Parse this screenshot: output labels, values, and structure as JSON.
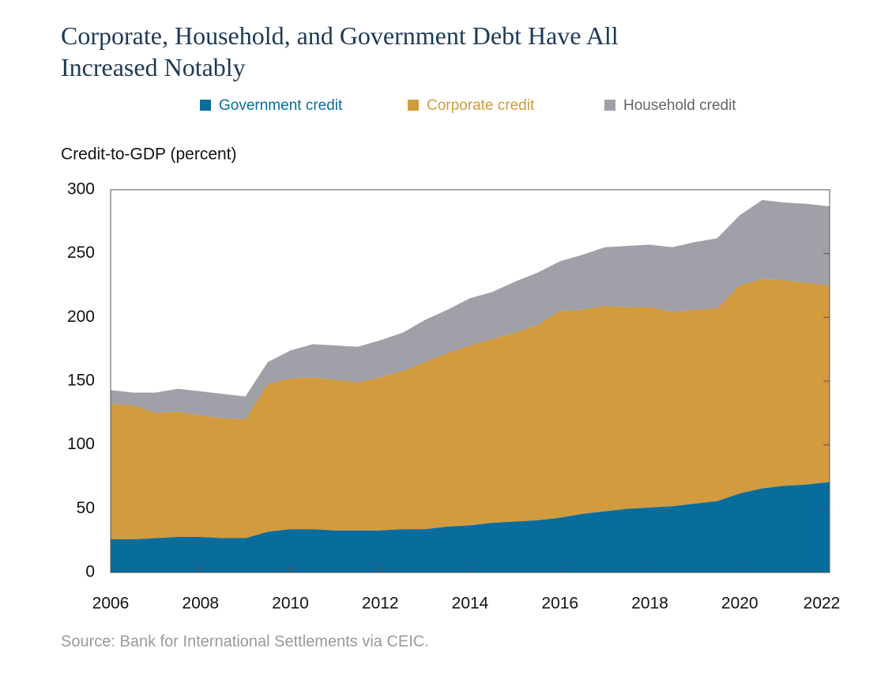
{
  "chart_data": {
    "type": "stacked_area",
    "title_lines": [
      "Corporate, Household, and Government Debt Have All",
      "Increased Notably"
    ],
    "y_axis_label": "Credit-to-GDP (percent)",
    "source": "Source: Bank for International Settlements via CEIC.",
    "x": [
      2006,
      2006.5,
      2007,
      2007.5,
      2008,
      2008.5,
      2009,
      2009.5,
      2010,
      2010.5,
      2011,
      2011.5,
      2012,
      2012.5,
      2013,
      2013.5,
      2014,
      2014.5,
      2015,
      2015.5,
      2016,
      2016.5,
      2017,
      2017.5,
      2018,
      2018.5,
      2019,
      2019.5,
      2020,
      2020.5,
      2021,
      2021.5,
      2022
    ],
    "series": [
      {
        "name": "Government credit",
        "color": "#086d9c",
        "values": [
          26,
          26,
          27,
          28,
          28,
          27,
          27,
          32,
          34,
          34,
          33,
          33,
          33,
          34,
          34,
          36,
          37,
          39,
          40,
          41,
          43,
          46,
          48,
          50,
          51,
          52,
          54,
          56,
          62,
          66,
          68,
          69,
          71
        ]
      },
      {
        "name": "Corporate credit",
        "color": "#d19b3e",
        "values": [
          106,
          105,
          98,
          98,
          95,
          94,
          93,
          116,
          118,
          119,
          118,
          116,
          120,
          124,
          131,
          136,
          141,
          144,
          148,
          153,
          162,
          160,
          161,
          158,
          157,
          152,
          152,
          151,
          163,
          164,
          161,
          158,
          154
        ]
      },
      {
        "name": "Household credit",
        "color": "#a0a1a8",
        "values": [
          11,
          10,
          16,
          18,
          19,
          19,
          18,
          17,
          22,
          26,
          27,
          28,
          29,
          30,
          33,
          34,
          37,
          37,
          40,
          41,
          39,
          43,
          46,
          48,
          49,
          51,
          53,
          55,
          55,
          62,
          61,
          62,
          62
        ]
      }
    ],
    "xlim": [
      2006,
      2022
    ],
    "xticks": [
      2006,
      2008,
      2010,
      2012,
      2014,
      2016,
      2018,
      2020,
      2022
    ],
    "ylim": [
      0,
      300
    ],
    "yticks": [
      0,
      50,
      100,
      150,
      200,
      250,
      300
    ]
  }
}
